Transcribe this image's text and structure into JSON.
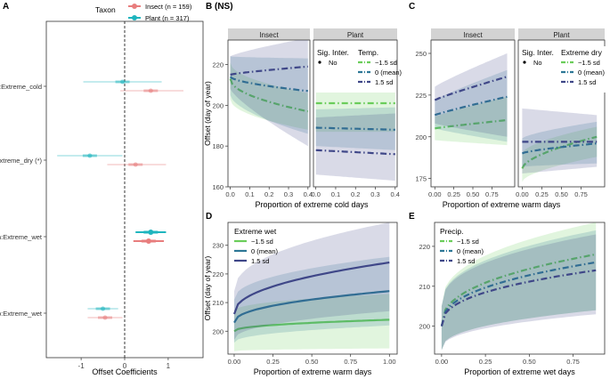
{
  "colors": {
    "insect": "#E87D7D",
    "plant": "#1FB5BE",
    "low": "#6ACD5A",
    "mean": "#2D7796",
    "high": "#3F4788",
    "strip_bg": "#D3D3D3"
  },
  "chart_data": [
    {
      "id": "A",
      "type": "scatter",
      "panel_label": "A",
      "xlabel": "Offset Coefficients",
      "xlim": [
        -1.8,
        1.8
      ],
      "xticks": [
        "-1",
        "0",
        "1"
      ],
      "legend_title": "Taxon",
      "legend": [
        {
          "name": "Insect (n = 159)",
          "color": "#E87D7D"
        },
        {
          "name": "Plant (n = 317)",
          "color": "#1FB5BE"
        }
      ],
      "terms": [
        {
          "label": "Temp:Extreme_cold",
          "plant": {
            "est": -0.05,
            "lo": -0.95,
            "hi": 0.85
          },
          "insect": {
            "est": 0.6,
            "lo": -0.1,
            "hi": 1.35
          }
        },
        {
          "label": "Extreme_warm:Extreme_dry (*)",
          "plant": {
            "est": -0.8,
            "lo": -1.55,
            "hi": -0.05
          },
          "insect": {
            "est": 0.25,
            "lo": -0.4,
            "hi": 0.95
          }
        },
        {
          "label": "Extreme_warm:Extreme_wet",
          "plant": {
            "est": 0.6,
            "lo": 0.25,
            "hi": 0.95
          },
          "insect": {
            "est": 0.55,
            "lo": 0.2,
            "hi": 0.9
          }
        },
        {
          "label": "Precip:Extreme_wet",
          "plant": {
            "est": -0.5,
            "lo": -0.85,
            "hi": -0.15
          },
          "insect": {
            "est": -0.45,
            "lo": -0.85,
            "hi": -0.05
          }
        }
      ]
    },
    {
      "id": "B",
      "type": "line",
      "panel_label": "B (NS)",
      "xlabel": "Proportion of extreme cold days",
      "ylabel": "Offset (day of year)",
      "ylim": [
        160,
        232
      ],
      "yticks": [
        160,
        180,
        200,
        220
      ],
      "xlim": [
        -0.012,
        0.41
      ],
      "xticks": [
        "0.0",
        "0.1",
        "0.2",
        "0.3",
        "0.4"
      ],
      "facets": [
        {
          "name": "Insect",
          "x": [
            0.0,
            0.4
          ],
          "series": [
            {
              "name": "−1.5 sd",
              "y0": 213,
              "y1": 197,
              "band": [
                [
                  203,
                  188
                ],
                [
                  221,
                  206
                ]
              ],
              "curve": 0.5
            },
            {
              "name": "0 (mean)",
              "y0": 214,
              "y1": 207,
              "band": [
                [
                  205,
                  186
                ],
                [
                  224,
                  223
                ]
              ],
              "curve": 0.6
            },
            {
              "name": "1.5 sd",
              "y0": 215,
              "y1": 219,
              "band": [
                [
                  208,
                  180
                ],
                [
                  224,
                  233
                ]
              ],
              "curve": 0.8
            }
          ]
        },
        {
          "name": "Plant",
          "x": [
            0.0,
            0.4
          ],
          "series": [
            {
              "name": "−1.5 sd",
              "y0": 201,
              "y1": 201,
              "band": [
                [
                  187,
                  187
                ],
                [
                  212,
                  212
                ]
              ],
              "curve": 1
            },
            {
              "name": "0 (mean)",
              "y0": 189,
              "y1": 188,
              "band": [
                [
                  180,
                  178
                ],
                [
                  198,
                  199
                ]
              ],
              "curve": 1
            },
            {
              "name": "1.5 sd",
              "y0": 178,
              "y1": 176,
              "band": [
                [
                  166,
                  163
                ],
                [
                  194,
                  196
                ]
              ],
              "curve": 1
            }
          ]
        }
      ],
      "legend_title": "Temp.",
      "legend": [
        "−1.5 sd",
        "0 (mean)",
        "1.5 sd"
      ],
      "sig_title": "Sig. Inter.",
      "sig_entry": "No"
    },
    {
      "id": "C",
      "type": "line",
      "panel_label": "C",
      "xlabel": "Proportion of extreme warm days",
      "ylim": [
        170,
        258
      ],
      "yticks": [
        175,
        200,
        225,
        250
      ],
      "xlim": [
        -0.05,
        1.05
      ],
      "xticks": [
        "0.00",
        "0.25",
        "0.50",
        "0.75"
      ],
      "facets": [
        {
          "name": "Insect",
          "x": [
            0.0,
            0.95
          ],
          "series": [
            {
              "name": "−1.5 sd",
              "y0": 205,
              "y1": 210,
              "band": [
                [
                  198,
                  195
                ],
                [
                  212,
                  224
                ]
              ],
              "curve": 0.9
            },
            {
              "name": "0 (mean)",
              "y0": 213,
              "y1": 224,
              "band": [
                [
                  205,
                  197
                ],
                [
                  222,
                  240
                ]
              ],
              "curve": 0.9
            },
            {
              "name": "1.5 sd",
              "y0": 222,
              "y1": 236,
              "band": [
                [
                  208,
                  200
                ],
                [
                  230,
                  250
                ]
              ],
              "curve": 0.9
            }
          ]
        },
        {
          "name": "Plant",
          "x": [
            0.0,
            0.95
          ],
          "series": [
            {
              "name": "−1.5 sd",
              "y0": 181,
              "y1": 200,
              "band": [
                [
                  173,
                  188
                ],
                [
                  190,
                  206
                ]
              ],
              "curve": 0.6
            },
            {
              "name": "0 (mean)",
              "y0": 190,
              "y1": 196,
              "band": [
                [
                  182,
                  184
                ],
                [
                  199,
                  209
                ]
              ],
              "curve": 0.7
            },
            {
              "name": "1.5 sd",
              "y0": 197,
              "y1": 197,
              "band": [
                [
                  178,
                  182
                ],
                [
                  217,
                  213
                ]
              ],
              "curve": 1
            }
          ]
        }
      ],
      "legend_title": "Extreme dry",
      "legend": [
        "−1.5 sd",
        "0 (mean)",
        "1.5 sd"
      ],
      "sig_title": "Sig. Inter.",
      "sig_entry": "No"
    },
    {
      "id": "D",
      "type": "line",
      "panel_label": "D",
      "xlabel": "Proportion of extreme warm days",
      "ylabel": "Offset (day of year)",
      "ylim": [
        192,
        238
      ],
      "yticks": [
        200,
        210,
        220,
        230
      ],
      "xlim": [
        -0.04,
        1.05
      ],
      "xticks": [
        "0.00",
        "0.25",
        "0.50",
        "0.75",
        "1.00"
      ],
      "x": [
        0.0,
        1.0
      ],
      "series": [
        {
          "name": "−1.5 sd",
          "y0": 200,
          "y1": 204,
          "band": [
            [
              193,
              194
            ],
            [
              207,
              213
            ]
          ],
          "curve": 0.45
        },
        {
          "name": "0 (mean)",
          "y0": 203,
          "y1": 214,
          "band": [
            [
              196,
              202
            ],
            [
              211,
              226
            ]
          ],
          "curve": 0.45
        },
        {
          "name": "1.5 sd",
          "y0": 206,
          "y1": 224,
          "band": [
            [
              197,
              207
            ],
            [
              214,
              238
            ]
          ],
          "curve": 0.45
        }
      ],
      "legend_title": "Extreme wet",
      "legend": [
        "−1.5 sd",
        "0 (mean)",
        "1.5 sd"
      ]
    },
    {
      "id": "E",
      "type": "line",
      "panel_label": "E",
      "xlabel": "Proportion of extreme wet days",
      "ylim": [
        193,
        226
      ],
      "yticks": [
        200,
        210,
        220
      ],
      "xlim": [
        -0.04,
        0.93
      ],
      "xticks": [
        "0.00",
        "0.25",
        "0.50",
        "0.75"
      ],
      "x": [
        0.0,
        0.88
      ],
      "series": [
        {
          "name": "−1.5 sd",
          "y0": 200,
          "y1": 218,
          "band": [
            [
              194,
              204
            ],
            [
              205,
              226
            ]
          ],
          "curve": 0.4
        },
        {
          "name": "0 (mean)",
          "y0": 200,
          "y1": 216,
          "band": [
            [
              194,
              204
            ],
            [
              205,
              224
            ]
          ],
          "curve": 0.4
        },
        {
          "name": "1.5 sd",
          "y0": 200,
          "y1": 214,
          "band": [
            [
              194,
              203
            ],
            [
              205,
              223
            ]
          ],
          "curve": 0.4
        }
      ],
      "legend_title": "Precip.",
      "legend": [
        "−1.5 sd",
        "0 (mean)",
        "1.5 sd"
      ]
    }
  ]
}
